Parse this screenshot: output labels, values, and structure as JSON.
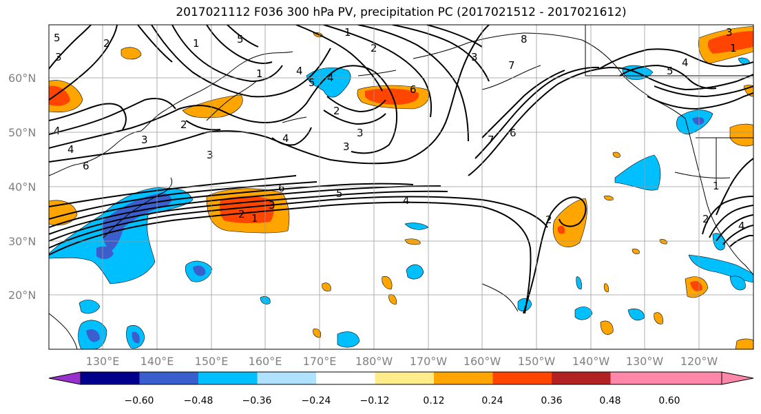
{
  "title": "2017021112 F036 300 hPa PV, precipitation PC (2017021512 - 2017021612)",
  "lat_labels": [
    "60°N",
    "50°N",
    "40°N",
    "30°N",
    "20°N"
  ],
  "lon_labels": [
    "130°E",
    "140°E",
    "150°E",
    "160°E",
    "170°E",
    "180°W",
    "170°W",
    "160°W",
    "150°W",
    "140°W",
    "130°W",
    "120°W"
  ],
  "colorbar": {
    "ticks": [
      "−0.60",
      "−0.48",
      "−0.36",
      "−0.24",
      "−0.12",
      "0.12",
      "0.24",
      "0.36",
      "0.48",
      "0.60"
    ],
    "colors": [
      "#9932cc",
      "#00008b",
      "#3a5fcd",
      "#00bfff",
      "#b0e2ff",
      "#ffffff",
      "#ffec8b",
      "#ffa500",
      "#ff4500",
      "#b22222",
      "#ff88aa"
    ]
  },
  "contour_labels": [
    "5",
    "2",
    "3",
    "1",
    "5",
    "1",
    "2",
    "3",
    "8",
    "7",
    "6",
    "4",
    "1",
    "2",
    "3",
    "4",
    "3",
    "6",
    "7",
    "6",
    "3",
    "5",
    "4",
    "1",
    "2",
    "3",
    "4",
    "5",
    "6",
    "4",
    "2",
    "1",
    "3",
    "2",
    "1",
    "4",
    "3",
    "5",
    "2",
    "4",
    "4"
  ]
}
